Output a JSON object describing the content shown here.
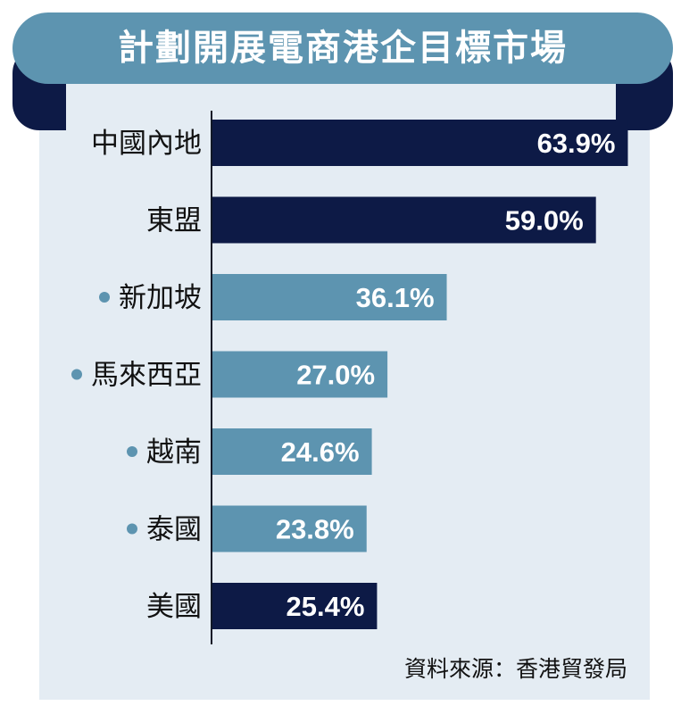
{
  "title": "計劃開展電商港企目標市場",
  "source": "資料來源：香港貿發局",
  "colors": {
    "dark": "#0d1a46",
    "light": "#5d94b0",
    "background": "#e4ecf3"
  },
  "chart_data": {
    "type": "bar",
    "orientation": "horizontal",
    "categories": [
      "中國內地",
      "東盟",
      "新加坡",
      "馬來西亞",
      "越南",
      "泰國",
      "美國"
    ],
    "values": [
      63.9,
      59.0,
      36.1,
      27.0,
      24.6,
      23.8,
      25.4
    ],
    "value_labels": [
      "63.9%",
      "59.0%",
      "36.1%",
      "27.0%",
      "24.6%",
      "23.8%",
      "25.4%"
    ],
    "sub_item_bullet": [
      false,
      false,
      true,
      true,
      true,
      true,
      false
    ],
    "unit": "%",
    "xlim": [
      0,
      80
    ],
    "grid": false,
    "legend": "none"
  }
}
